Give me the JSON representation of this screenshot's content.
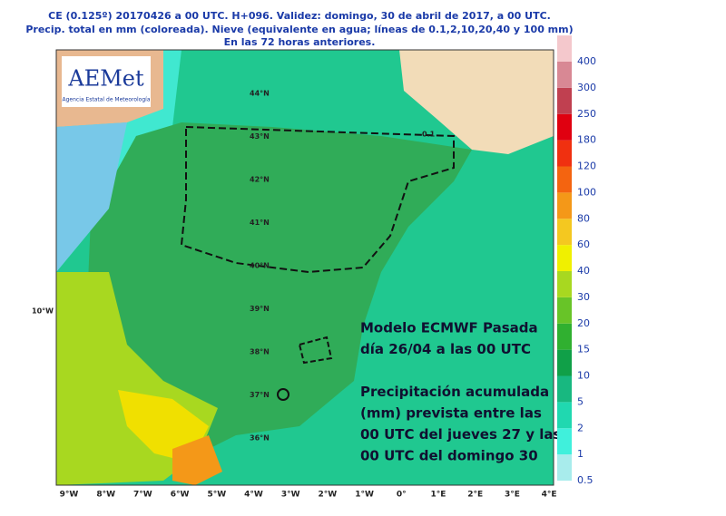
{
  "header": {
    "lines": [
      "CE (0.125º) 20170426 a 00 UTC.  H+096. Validez: domingo, 30 de abril de 2017,  a  00 UTC.",
      "Precip. total en mm (coloreada). Nieve (equivalente en agua; líneas de 0.1,2,10,20,40 y 100 mm)",
      "En las 72 horas anteriores."
    ]
  },
  "logo": {
    "name": "AEMet",
    "subtitle": "Agencia Estatal de Meteorología"
  },
  "map": {
    "longitudes": [
      "9°W",
      "8°W",
      "7°W",
      "6°W",
      "5°W",
      "4°W",
      "3°W",
      "2°W",
      "1°W",
      "0°",
      "1°E",
      "2°E",
      "3°E",
      "4°E"
    ],
    "latitudes": [
      "44°N",
      "43°N",
      "42°N",
      "41°N",
      "40°N",
      "39°N",
      "38°N",
      "37°N",
      "36°N"
    ],
    "left_label": "10°W",
    "contour_label": "0.1",
    "annotation": [
      "Modelo ECMWF Pasada",
      "día 26/04 a las 00 UTC",
      "",
      "Precipitación acumulada",
      "(mm) prevista entre las",
      "00 UTC del jueves 27 y las",
      "00 UTC del domingo 30"
    ]
  },
  "legend": [
    {
      "value": 0.5,
      "color": "#a8ecec"
    },
    {
      "value": 1,
      "color": "#40f0dc"
    },
    {
      "value": 2,
      "color": "#20d8b0"
    },
    {
      "value": 5,
      "color": "#18b880"
    },
    {
      "value": 10,
      "color": "#10a048"
    },
    {
      "value": 15,
      "color": "#30b030"
    },
    {
      "value": 20,
      "color": "#68c428"
    },
    {
      "value": 30,
      "color": "#a8d820"
    },
    {
      "value": 40,
      "color": "#f0f000"
    },
    {
      "value": 60,
      "color": "#f4c820"
    },
    {
      "value": 80,
      "color": "#f49818"
    },
    {
      "value": 100,
      "color": "#f46410"
    },
    {
      "value": 120,
      "color": "#f03010"
    },
    {
      "value": 180,
      "color": "#e00010"
    },
    {
      "value": 250,
      "color": "#c04050"
    },
    {
      "value": 300,
      "color": "#d88894"
    },
    {
      "value": 400,
      "color": "#f4c8cc"
    }
  ]
}
